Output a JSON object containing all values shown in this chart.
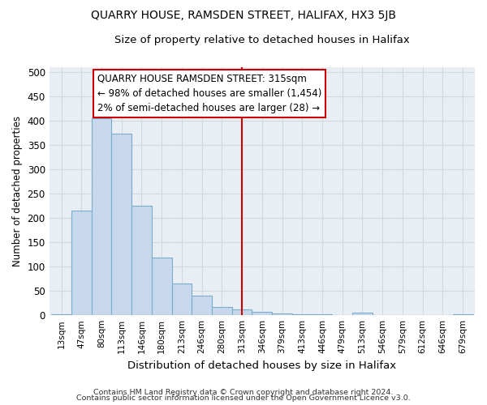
{
  "title": "QUARRY HOUSE, RAMSDEN STREET, HALIFAX, HX3 5JB",
  "subtitle": "Size of property relative to detached houses in Halifax",
  "xlabel": "Distribution of detached houses by size in Halifax",
  "ylabel": "Number of detached properties",
  "bar_color": "#c8d8ec",
  "bar_edge_color": "#7aadcc",
  "categories": [
    "13sqm",
    "47sqm",
    "80sqm",
    "113sqm",
    "146sqm",
    "180sqm",
    "213sqm",
    "246sqm",
    "280sqm",
    "313sqm",
    "346sqm",
    "379sqm",
    "413sqm",
    "446sqm",
    "479sqm",
    "513sqm",
    "546sqm",
    "579sqm",
    "612sqm",
    "646sqm",
    "679sqm"
  ],
  "values": [
    2,
    215,
    405,
    373,
    226,
    119,
    65,
    40,
    17,
    12,
    7,
    3,
    2,
    2,
    1,
    6,
    1,
    1,
    1,
    1,
    2
  ],
  "vline_x": 9,
  "vline_color": "#cc0000",
  "annotation_line1": "QUARRY HOUSE RAMSDEN STREET: 315sqm",
  "annotation_line2": "← 98% of detached houses are smaller (1,454)",
  "annotation_line3": "2% of semi-detached houses are larger (28) →",
  "annotation_box_color": "#cc0000",
  "annotation_box_bg": "#ffffff",
  "ylim": [
    0,
    510
  ],
  "yticks": [
    0,
    50,
    100,
    150,
    200,
    250,
    300,
    350,
    400,
    450,
    500
  ],
  "grid_color": "#d0d8e0",
  "bg_color": "#e8eef4",
  "fig_bg_color": "#ffffff",
  "footer_line1": "Contains HM Land Registry data © Crown copyright and database right 2024.",
  "footer_line2": "Contains public sector information licensed under the Open Government Licence v3.0."
}
